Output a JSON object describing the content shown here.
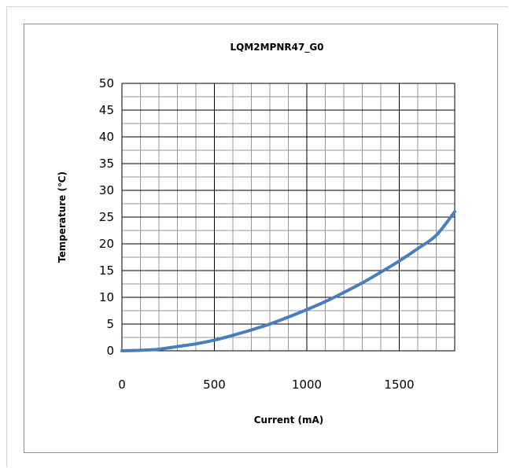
{
  "chart_data": {
    "type": "line",
    "title": "LQM2MPNR47_G0",
    "xlabel": "Current (mA)",
    "ylabel": "Temperature (℃)",
    "xlim": [
      0,
      1800
    ],
    "ylim": [
      0,
      50
    ],
    "x_ticks": [
      "0",
      "500",
      "1000",
      "1500"
    ],
    "y_ticks": [
      "0",
      "5",
      "10",
      "15",
      "20",
      "25",
      "30",
      "35",
      "40",
      "45",
      "50"
    ],
    "grid": true,
    "legend": "none",
    "series": [
      {
        "color": "#4a7ebb",
        "x": [
          0,
          100,
          200,
          300,
          400,
          500,
          600,
          700,
          800,
          900,
          1000,
          1100,
          1200,
          1300,
          1400,
          1500,
          1600,
          1700,
          1800
        ],
        "y": [
          0,
          0.1,
          0.3,
          0.8,
          1.3,
          2.0,
          2.9,
          3.9,
          5.0,
          6.3,
          7.7,
          9.2,
          10.9,
          12.7,
          14.7,
          16.8,
          19.1,
          21.6,
          26.0
        ]
      }
    ]
  }
}
